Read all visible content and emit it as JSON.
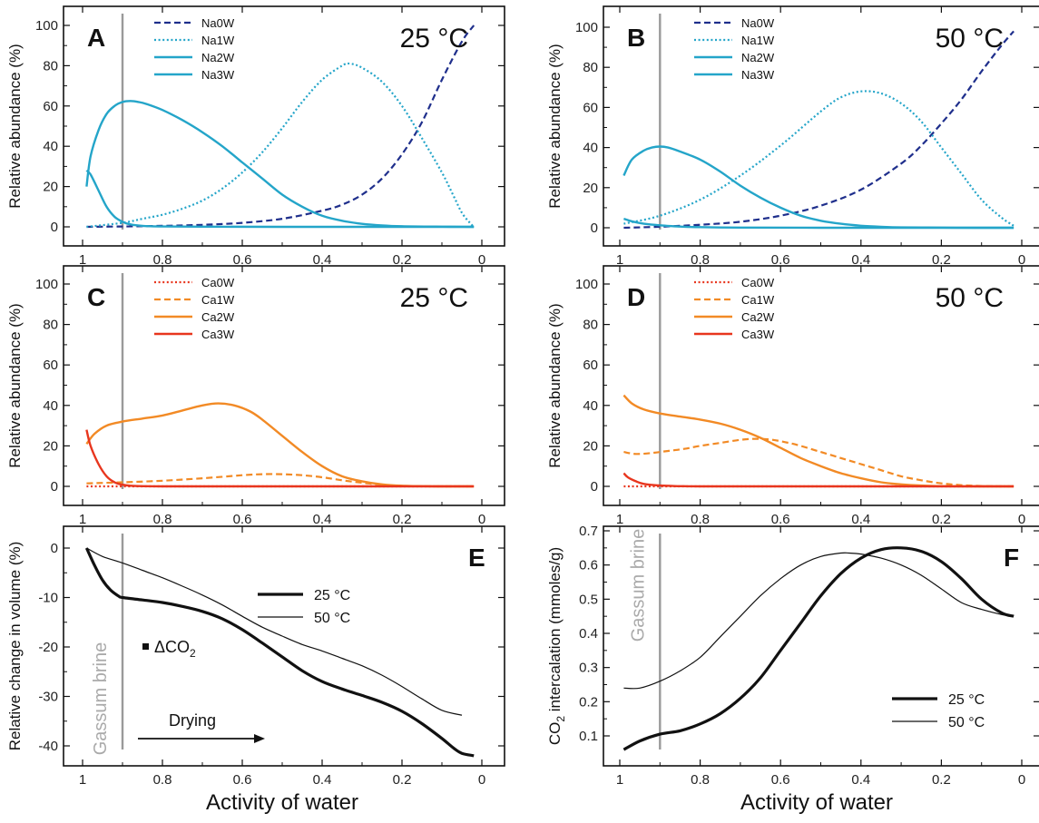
{
  "x_axis_label": "Activity of water",
  "brine_label": "Gassum brine",
  "drying_label": "Drying",
  "dco2_label": "ΔCO",
  "dco2_sub": "2",
  "colors": {
    "na_dark": "#1f2f8c",
    "na_light": "#24a5c9",
    "ca_red": "#e8361e",
    "ca_orange": "#f28a25",
    "marker": "#9a9a9a",
    "black": "#111111"
  },
  "chart_data": [
    {
      "panel": "A",
      "temperature": "25 °C",
      "type": "line",
      "ylabel": "Relative abundance (%)",
      "xlim": [
        1.0,
        0.0
      ],
      "ylim": [
        -5,
        105
      ],
      "xticks": [
        "1",
        "0.8",
        "0.6",
        "0.4",
        "0.2",
        "0"
      ],
      "yticks": [
        "0",
        "20",
        "40",
        "60",
        "80",
        "100"
      ],
      "marker_x": 0.9,
      "legend_position": "top-left",
      "series": [
        {
          "name": "Na0W",
          "style": "dashed",
          "color": "#1f2f8c",
          "x": [
            0.99,
            0.9,
            0.8,
            0.7,
            0.6,
            0.5,
            0.4,
            0.35,
            0.3,
            0.25,
            0.2,
            0.15,
            0.1,
            0.05,
            0.02
          ],
          "y": [
            0,
            0.2,
            0.5,
            1,
            2,
            4,
            8,
            11,
            16,
            24,
            36,
            52,
            73,
            92,
            100
          ]
        },
        {
          "name": "Na1W",
          "style": "dotted",
          "color": "#24a5c9",
          "x": [
            0.99,
            0.9,
            0.85,
            0.8,
            0.75,
            0.7,
            0.65,
            0.6,
            0.55,
            0.5,
            0.45,
            0.4,
            0.35,
            0.33,
            0.3,
            0.25,
            0.2,
            0.15,
            0.1,
            0.07,
            0.05,
            0.03,
            0.02
          ],
          "y": [
            0,
            2,
            4,
            6,
            9,
            13,
            19,
            27,
            37,
            49,
            62,
            73,
            80,
            81,
            79,
            72,
            60,
            44,
            27,
            15,
            7,
            2,
            0
          ]
        },
        {
          "name": "Na2W",
          "style": "solid",
          "color": "#24a5c9",
          "x": [
            0.99,
            0.98,
            0.96,
            0.94,
            0.92,
            0.9,
            0.88,
            0.86,
            0.84,
            0.8,
            0.75,
            0.7,
            0.65,
            0.6,
            0.55,
            0.5,
            0.45,
            0.4,
            0.35,
            0.3,
            0.25,
            0.2,
            0.1,
            0.02
          ],
          "y": [
            20,
            35,
            48,
            56,
            60,
            62,
            62.5,
            62,
            61,
            58,
            53,
            47,
            40,
            32,
            24,
            16,
            10,
            5.5,
            3,
            1.5,
            0.7,
            0.3,
            0.1,
            0
          ]
        },
        {
          "name": "Na3W",
          "style": "solid",
          "color": "#24a5c9",
          "x": [
            0.99,
            0.98,
            0.96,
            0.94,
            0.92,
            0.9,
            0.88,
            0.85,
            0.8,
            0.7,
            0.5,
            0.02
          ],
          "y": [
            28,
            26,
            18,
            10,
            5,
            2.5,
            1.2,
            0.5,
            0.2,
            0.1,
            0,
            0
          ]
        }
      ]
    },
    {
      "panel": "B",
      "temperature": "50 °C",
      "type": "line",
      "ylabel": "Relative abundance (%)",
      "xlim": [
        1.0,
        0.0
      ],
      "ylim": [
        -5,
        105
      ],
      "xticks": [
        "1",
        "0.8",
        "0.6",
        "0.4",
        "0.2",
        "0"
      ],
      "yticks": [
        "0",
        "20",
        "40",
        "60",
        "80",
        "100"
      ],
      "marker_x": 0.9,
      "legend_position": "top-left",
      "series": [
        {
          "name": "Na0W",
          "style": "dashed",
          "color": "#1f2f8c",
          "x": [
            0.99,
            0.9,
            0.8,
            0.7,
            0.6,
            0.5,
            0.4,
            0.3,
            0.25,
            0.2,
            0.15,
            0.1,
            0.05,
            0.02
          ],
          "y": [
            0,
            0.5,
            1.5,
            3,
            6,
            11,
            19,
            32,
            41,
            52,
            64,
            78,
            91,
            98
          ]
        },
        {
          "name": "Na1W",
          "style": "dotted",
          "color": "#24a5c9",
          "x": [
            0.99,
            0.9,
            0.8,
            0.7,
            0.6,
            0.5,
            0.45,
            0.4,
            0.35,
            0.3,
            0.25,
            0.2,
            0.15,
            0.1,
            0.05,
            0.02
          ],
          "y": [
            2,
            6,
            14,
            26,
            41,
            58,
            65,
            68,
            67,
            62,
            53,
            40,
            27,
            14,
            5,
            1
          ]
        },
        {
          "name": "Na2W",
          "style": "solid",
          "color": "#24a5c9",
          "x": [
            0.99,
            0.97,
            0.94,
            0.92,
            0.9,
            0.88,
            0.85,
            0.8,
            0.75,
            0.7,
            0.65,
            0.6,
            0.55,
            0.5,
            0.45,
            0.4,
            0.35,
            0.3,
            0.2,
            0.1,
            0.02
          ],
          "y": [
            26,
            34,
            38.5,
            40,
            40.5,
            40,
            38,
            34,
            28,
            21,
            15,
            10,
            6,
            3.5,
            2,
            1,
            0.5,
            0.2,
            0.1,
            0,
            0
          ]
        },
        {
          "name": "Na3W",
          "style": "solid",
          "color": "#24a5c9",
          "x": [
            0.99,
            0.97,
            0.94,
            0.9,
            0.85,
            0.8,
            0.7,
            0.5,
            0.02
          ],
          "y": [
            4.5,
            3.2,
            2,
            1.2,
            0.6,
            0.3,
            0.1,
            0,
            0
          ]
        }
      ]
    },
    {
      "panel": "C",
      "temperature": "25 °C",
      "type": "line",
      "ylabel": "Relative abundance (%)",
      "xlim": [
        1.0,
        0.0
      ],
      "ylim": [
        -5,
        110
      ],
      "xticks": [
        "1",
        "0.8",
        "0.6",
        "0.4",
        "0.2",
        "0"
      ],
      "yticks": [
        "0",
        "20",
        "40",
        "60",
        "80",
        "100"
      ],
      "marker_x": 0.9,
      "legend_position": "top-left",
      "series": [
        {
          "name": "Ca0W",
          "style": "dotted",
          "color": "#e8361e",
          "x": [
            0.99,
            0.9,
            0.7,
            0.5,
            0.3,
            0.1,
            0.02
          ],
          "y": [
            0,
            0,
            0,
            0,
            0,
            0,
            0
          ]
        },
        {
          "name": "Ca1W",
          "style": "dashed",
          "color": "#f28a25",
          "x": [
            0.99,
            0.9,
            0.8,
            0.7,
            0.6,
            0.55,
            0.5,
            0.45,
            0.4,
            0.35,
            0.3,
            0.25,
            0.2,
            0.15,
            0.1,
            0.02
          ],
          "y": [
            1.5,
            2,
            2.8,
            4,
            5.5,
            6,
            6,
            5.5,
            4.5,
            3,
            1.8,
            0.8,
            0.3,
            0.1,
            0,
            0
          ]
        },
        {
          "name": "Ca2W",
          "style": "solid",
          "color": "#f28a25",
          "x": [
            0.99,
            0.97,
            0.94,
            0.9,
            0.85,
            0.8,
            0.75,
            0.7,
            0.66,
            0.62,
            0.58,
            0.55,
            0.5,
            0.45,
            0.4,
            0.35,
            0.3,
            0.25,
            0.2,
            0.15,
            0.1,
            0.02
          ],
          "y": [
            21,
            26,
            30,
            32,
            33.5,
            35,
            37.5,
            40,
            41,
            40,
            37,
            33,
            25,
            17,
            10,
            5,
            2.5,
            1,
            0.3,
            0.1,
            0,
            0
          ]
        },
        {
          "name": "Ca3W",
          "style": "solid",
          "color": "#e8361e",
          "x": [
            0.99,
            0.98,
            0.96,
            0.94,
            0.92,
            0.9,
            0.88,
            0.85,
            0.8,
            0.7,
            0.5,
            0.02
          ],
          "y": [
            28,
            20,
            11,
            5,
            2,
            0.8,
            0.3,
            0.1,
            0,
            0,
            0,
            0
          ]
        }
      ]
    },
    {
      "panel": "D",
      "temperature": "50 °C",
      "type": "line",
      "ylabel": "Relative abundance (%)",
      "xlim": [
        1.0,
        0.0
      ],
      "ylim": [
        -5,
        110
      ],
      "xticks": [
        "1",
        "0.8",
        "0.6",
        "0.4",
        "0.2",
        "0"
      ],
      "yticks": [
        "0",
        "20",
        "40",
        "60",
        "80",
        "100"
      ],
      "marker_x": 0.9,
      "legend_position": "top-left",
      "series": [
        {
          "name": "Ca0W",
          "style": "dotted",
          "color": "#e8361e",
          "x": [
            0.99,
            0.9,
            0.7,
            0.5,
            0.3,
            0.1,
            0.02
          ],
          "y": [
            0,
            0,
            0,
            0,
            0,
            0,
            0
          ]
        },
        {
          "name": "Ca1W",
          "style": "dashed",
          "color": "#f28a25",
          "x": [
            0.99,
            0.96,
            0.92,
            0.88,
            0.84,
            0.8,
            0.75,
            0.7,
            0.66,
            0.62,
            0.58,
            0.55,
            0.5,
            0.45,
            0.4,
            0.35,
            0.3,
            0.25,
            0.2,
            0.15,
            0.1,
            0.05,
            0.02
          ],
          "y": [
            17,
            16,
            16.5,
            17.5,
            18.5,
            20,
            21.5,
            23,
            23.5,
            23,
            21.5,
            20,
            17,
            14,
            11,
            8,
            5,
            3,
            1.5,
            0.6,
            0.2,
            0,
            0
          ]
        },
        {
          "name": "Ca2W",
          "style": "solid",
          "color": "#f28a25",
          "x": [
            0.99,
            0.97,
            0.94,
            0.9,
            0.85,
            0.8,
            0.75,
            0.7,
            0.65,
            0.6,
            0.55,
            0.5,
            0.45,
            0.4,
            0.35,
            0.3,
            0.25,
            0.2,
            0.1,
            0.02
          ],
          "y": [
            45,
            41,
            38,
            36,
            34.5,
            33,
            31,
            28,
            24,
            19,
            14,
            10,
            6.5,
            4,
            2,
            1,
            0.4,
            0.1,
            0,
            0
          ]
        },
        {
          "name": "Ca3W",
          "style": "solid",
          "color": "#e8361e",
          "x": [
            0.99,
            0.98,
            0.96,
            0.94,
            0.9,
            0.85,
            0.8,
            0.7,
            0.5,
            0.02
          ],
          "y": [
            6.5,
            4.5,
            2.5,
            1.2,
            0.4,
            0.1,
            0,
            0,
            0,
            0
          ]
        }
      ]
    },
    {
      "panel": "E",
      "type": "line",
      "ylabel": "Relative change in volume (%)",
      "xlim": [
        1.0,
        0.0
      ],
      "ylim": [
        -45,
        3
      ],
      "xticks": [
        "1",
        "0.8",
        "0.6",
        "0.4",
        "0.2",
        "0"
      ],
      "yticks": [
        "0",
        "-10",
        "-20",
        "-30",
        "-40"
      ],
      "marker_x": 0.9,
      "legend_position": "top-right",
      "series": [
        {
          "name": "25 °C",
          "style": "thick",
          "color": "#111111",
          "x": [
            0.99,
            0.97,
            0.95,
            0.93,
            0.91,
            0.9,
            0.85,
            0.8,
            0.75,
            0.7,
            0.65,
            0.6,
            0.55,
            0.5,
            0.45,
            0.4,
            0.35,
            0.3,
            0.25,
            0.2,
            0.15,
            0.1,
            0.07,
            0.05,
            0.02
          ],
          "y": [
            0,
            -3.5,
            -6.5,
            -8.5,
            -9.7,
            -10,
            -10.5,
            -11,
            -11.8,
            -12.8,
            -14.3,
            -16.5,
            -19.2,
            -22,
            -24.8,
            -27,
            -28.5,
            -29.8,
            -31.2,
            -33,
            -35.5,
            -38.5,
            -40.5,
            -41.5,
            -42
          ]
        },
        {
          "name": "50 °C",
          "style": "thin",
          "color": "#111111",
          "x": [
            0.99,
            0.95,
            0.9,
            0.85,
            0.8,
            0.75,
            0.7,
            0.65,
            0.6,
            0.55,
            0.5,
            0.45,
            0.4,
            0.35,
            0.3,
            0.25,
            0.2,
            0.15,
            0.1,
            0.05
          ],
          "y": [
            0,
            -1.7,
            -3,
            -4.5,
            -6,
            -7.7,
            -9.5,
            -11.5,
            -13.8,
            -16,
            -17.8,
            -19.5,
            -20.8,
            -22.3,
            -23.8,
            -25.7,
            -28,
            -30.5,
            -32.8,
            -33.8
          ]
        }
      ]
    },
    {
      "panel": "F",
      "type": "line",
      "ylabel": "CO",
      "ylabel_sub": "2",
      "ylabel_rest": " intercalation (mmoles/g)",
      "xlim": [
        1.0,
        0.0
      ],
      "ylim": [
        0.04,
        0.7
      ],
      "xticks": [
        "1",
        "0.8",
        "0.6",
        "0.4",
        "0.2",
        "0"
      ],
      "yticks": [
        "0.1",
        "0.2",
        "0.3",
        "0.4",
        "0.5",
        "0.6",
        "0.7"
      ],
      "marker_x": 0.9,
      "legend_position": "bottom-right",
      "series": [
        {
          "name": "25 °C",
          "style": "thick",
          "color": "#111111",
          "x": [
            0.99,
            0.95,
            0.9,
            0.85,
            0.8,
            0.75,
            0.7,
            0.65,
            0.6,
            0.55,
            0.5,
            0.45,
            0.4,
            0.35,
            0.3,
            0.25,
            0.2,
            0.15,
            0.1,
            0.05,
            0.02
          ],
          "y": [
            0.06,
            0.085,
            0.105,
            0.115,
            0.135,
            0.165,
            0.21,
            0.27,
            0.35,
            0.43,
            0.51,
            0.575,
            0.62,
            0.645,
            0.65,
            0.64,
            0.61,
            0.56,
            0.5,
            0.46,
            0.45
          ]
        },
        {
          "name": "50 °C",
          "style": "thin",
          "color": "#111111",
          "x": [
            0.99,
            0.95,
            0.9,
            0.85,
            0.8,
            0.75,
            0.7,
            0.65,
            0.6,
            0.55,
            0.5,
            0.45,
            0.43,
            0.4,
            0.35,
            0.3,
            0.25,
            0.2,
            0.15,
            0.1,
            0.05,
            0.02
          ],
          "y": [
            0.24,
            0.24,
            0.26,
            0.29,
            0.33,
            0.39,
            0.45,
            0.51,
            0.56,
            0.6,
            0.625,
            0.635,
            0.635,
            0.632,
            0.62,
            0.6,
            0.57,
            0.53,
            0.49,
            0.47,
            0.455,
            0.45
          ]
        }
      ]
    }
  ]
}
